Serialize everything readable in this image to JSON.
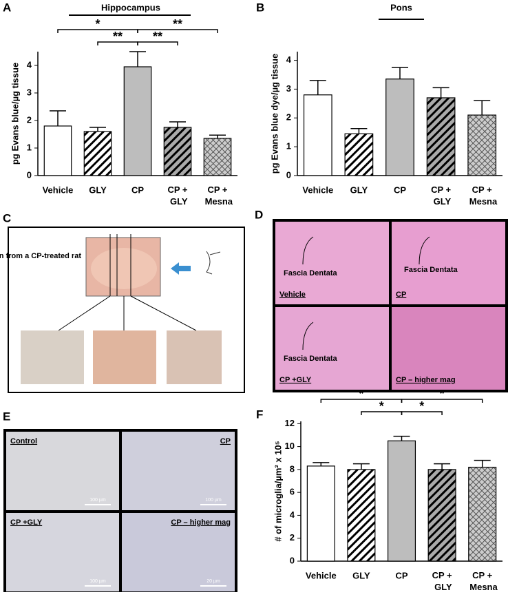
{
  "chart_data": [
    {
      "type": "bar",
      "panel": "A",
      "title": "Hippocampus",
      "ylabel": "pg Evans blue/µg tissue",
      "categories": [
        "Vehicle",
        "GLY",
        "CP",
        "CP + GLY",
        "CP + Mesna"
      ],
      "values": [
        1.8,
        1.6,
        3.95,
        1.75,
        1.35
      ],
      "errors": [
        0.55,
        0.15,
        0.55,
        0.2,
        0.12
      ],
      "fills": [
        "white",
        "hatch",
        "gray",
        "hatch-gray",
        "crosshatch"
      ],
      "ylim": [
        0,
        4.5
      ],
      "yticks": [
        0,
        1,
        2,
        3,
        4
      ],
      "significance": [
        {
          "label": "*",
          "between": [
            0,
            2
          ]
        },
        {
          "label": "**",
          "between": [
            2,
            4
          ]
        },
        {
          "label": "**",
          "between": [
            1,
            2
          ]
        },
        {
          "label": "**",
          "between": [
            2,
            3
          ]
        }
      ]
    },
    {
      "type": "bar",
      "panel": "B",
      "title": "Pons",
      "ylabel": "pg Evans blue dye/µg tissue",
      "categories": [
        "Vehicle",
        "GLY",
        "CP",
        "CP + GLY",
        "CP + Mesna"
      ],
      "values": [
        2.8,
        1.45,
        3.35,
        2.7,
        2.1
      ],
      "errors": [
        0.5,
        0.18,
        0.4,
        0.35,
        0.5
      ],
      "fills": [
        "white",
        "hatch",
        "gray",
        "hatch-gray",
        "crosshatch"
      ],
      "ylim": [
        0,
        4.3
      ],
      "yticks": [
        0,
        1,
        2,
        3,
        4
      ],
      "significance": []
    },
    {
      "type": "bar",
      "panel": "F",
      "ylabel": "# of microglia/µm² x 10⁵",
      "categories": [
        "Vehicle",
        "GLY",
        "CP",
        "CP + GLY",
        "CP + Mesna"
      ],
      "values": [
        8.3,
        8.0,
        10.5,
        8.0,
        8.2
      ],
      "errors": [
        0.3,
        0.5,
        0.4,
        0.5,
        0.6
      ],
      "fills": [
        "white",
        "hatch",
        "gray",
        "hatch-gray",
        "crosshatch"
      ],
      "ylim": [
        0,
        12.2
      ],
      "yticks": [
        0,
        2,
        4,
        6,
        8,
        10,
        12
      ],
      "significance": [
        {
          "label": "*",
          "between": [
            0,
            2
          ]
        },
        {
          "label": "*",
          "between": [
            2,
            4
          ]
        },
        {
          "label": "*",
          "between": [
            1,
            2
          ]
        },
        {
          "label": "*",
          "between": [
            2,
            3
          ]
        }
      ]
    }
  ],
  "panels": {
    "C": {
      "label": "C",
      "caption": "Brain from a CP-treated rat"
    },
    "D": {
      "label": "D",
      "tiles": [
        {
          "caption": "Vehicle",
          "annotation": "Fascia Dentata"
        },
        {
          "caption": "CP",
          "annotation": "Fascia Dentata"
        },
        {
          "caption": "CP +GLY",
          "annotation": "Fascia Dentata"
        },
        {
          "caption": "CP – higher mag"
        }
      ]
    },
    "E": {
      "label": "E",
      "tiles": [
        {
          "caption": "Control",
          "scale": "100 µm"
        },
        {
          "caption": "CP",
          "scale": "100 µm"
        },
        {
          "caption": "CP +GLY",
          "scale": "100 µm"
        },
        {
          "caption": "CP – higher mag",
          "scale": "20 µm"
        }
      ]
    }
  }
}
